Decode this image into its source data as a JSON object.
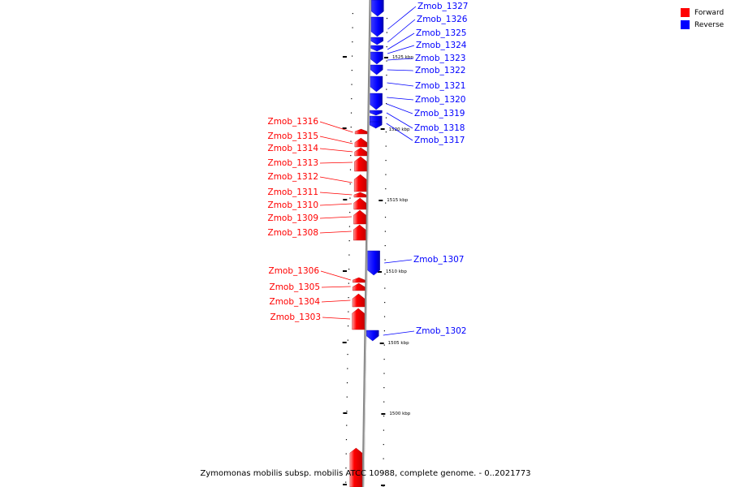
{
  "legend": {
    "forward_label": "Forward",
    "reverse_label": "Reverse",
    "forward_color": "#ff0000",
    "reverse_color": "#0000ff"
  },
  "caption": "Zymomonas mobilis subsp. mobilis ATCC 10988, complete genome. - 0..2021773",
  "ticks": [
    {
      "label": "1525 kbp"
    },
    {
      "label": "1520 kbp"
    },
    {
      "label": "1515 kbp"
    },
    {
      "label": "1510 kbp"
    },
    {
      "label": "1505 kbp"
    },
    {
      "label": "1500 kbp"
    }
  ],
  "genes": [
    {
      "id": "Zmob_1327",
      "strand": "reverse"
    },
    {
      "id": "Zmob_1326",
      "strand": "reverse"
    },
    {
      "id": "Zmob_1325",
      "strand": "reverse"
    },
    {
      "id": "Zmob_1324",
      "strand": "reverse"
    },
    {
      "id": "Zmob_1323",
      "strand": "reverse"
    },
    {
      "id": "Zmob_1322",
      "strand": "reverse"
    },
    {
      "id": "Zmob_1321",
      "strand": "reverse"
    },
    {
      "id": "Zmob_1320",
      "strand": "reverse"
    },
    {
      "id": "Zmob_1319",
      "strand": "reverse"
    },
    {
      "id": "Zmob_1318",
      "strand": "reverse"
    },
    {
      "id": "Zmob_1317",
      "strand": "reverse"
    },
    {
      "id": "Zmob_1316",
      "strand": "forward"
    },
    {
      "id": "Zmob_1315",
      "strand": "forward"
    },
    {
      "id": "Zmob_1314",
      "strand": "forward"
    },
    {
      "id": "Zmob_1313",
      "strand": "forward"
    },
    {
      "id": "Zmob_1312",
      "strand": "forward"
    },
    {
      "id": "Zmob_1311",
      "strand": "forward"
    },
    {
      "id": "Zmob_1310",
      "strand": "forward"
    },
    {
      "id": "Zmob_1309",
      "strand": "forward"
    },
    {
      "id": "Zmob_1308",
      "strand": "forward"
    },
    {
      "id": "Zmob_1307",
      "strand": "reverse"
    },
    {
      "id": "Zmob_1306",
      "strand": "forward"
    },
    {
      "id": "Zmob_1305",
      "strand": "forward"
    },
    {
      "id": "Zmob_1304",
      "strand": "forward"
    },
    {
      "id": "Zmob_1303",
      "strand": "forward"
    },
    {
      "id": "Zmob_1302",
      "strand": "reverse"
    }
  ]
}
